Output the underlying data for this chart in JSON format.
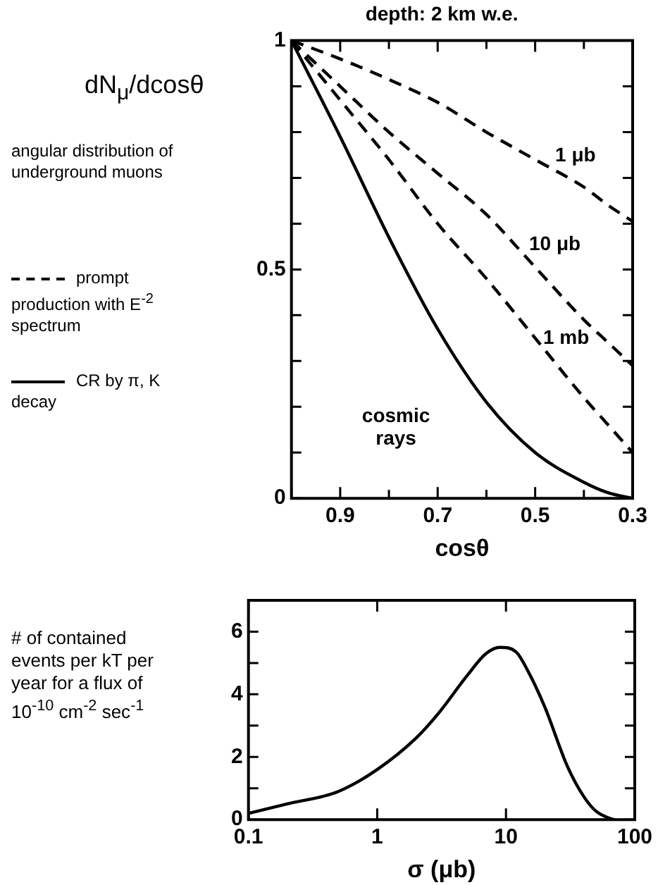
{
  "chart_data": [
    {
      "type": "line",
      "title": "depth: 2 km w.e.",
      "xlabel": "cosθ",
      "ylabel": "dN$_{μ}$/dcosθ",
      "x": [
        1.0,
        0.9,
        0.8,
        0.7,
        0.6,
        0.5,
        0.4,
        0.35,
        0.3
      ],
      "xlim": [
        1.0,
        0.3
      ],
      "xticks": [
        {
          "value": 1.0,
          "label": null
        },
        0.9,
        {
          "value": 0.8,
          "label": null
        },
        0.7,
        {
          "value": 0.6,
          "label": null
        },
        0.5,
        {
          "value": 0.4,
          "label": null
        },
        0.3
      ],
      "ylim": [
        0,
        1
      ],
      "yticks": [
        0,
        {
          "value": 0.1,
          "label": null
        },
        {
          "value": 0.2,
          "label": null
        },
        {
          "value": 0.3,
          "label": null
        },
        {
          "value": 0.4,
          "label": null
        },
        0.5,
        {
          "value": 0.6,
          "label": null
        },
        {
          "value": 0.7,
          "label": null
        },
        {
          "value": 0.8,
          "label": null
        },
        {
          "value": 0.9,
          "label": null
        },
        1
      ],
      "series": [
        {
          "name": "1 μb",
          "color": "#000000",
          "line_style": "dashed",
          "values": [
            1,
            0.96,
            0.915,
            0.865,
            0.8,
            0.74,
            0.68,
            0.64,
            0.605
          ]
        },
        {
          "name": "10 μb",
          "color": "#000000",
          "line_style": "dashed",
          "values": [
            1,
            0.9,
            0.8,
            0.71,
            0.62,
            0.505,
            0.39,
            0.34,
            0.29
          ]
        },
        {
          "name": "1 mb",
          "color": "#000000",
          "line_style": "dashed",
          "values": [
            1,
            0.87,
            0.74,
            0.6,
            0.48,
            0.35,
            0.22,
            0.16,
            0.1
          ]
        },
        {
          "name": "cosmic rays",
          "color": "#000000",
          "line_style": "solid",
          "values": [
            1,
            0.79,
            0.57,
            0.37,
            0.21,
            0.1,
            0.035,
            0.012,
            0
          ]
        }
      ],
      "grid": false,
      "legend": false,
      "annotations": [
        "angular distribution of underground muons",
        "prompt production with E$^{-2}$ spectrum",
        "CR by π, K decay"
      ]
    },
    {
      "type": "line",
      "xlabel": "σ (μb)",
      "ylabel": "# of contained events per kT per year for a flux of 10$^{-10}$ cm$^{-2}$ sec$^{-1}$",
      "log": "x",
      "x": [
        0.1,
        0.2,
        0.5,
        1,
        2,
        3,
        5,
        7,
        9,
        12,
        15,
        20,
        30,
        40,
        50,
        65,
        70
      ],
      "xlim": [
        0.1,
        100
      ],
      "xticks": [
        0.1,
        1,
        10,
        100
      ],
      "ylim": [
        0,
        7
      ],
      "yticks": [
        0,
        {
          "value": 1,
          "label": null
        },
        2,
        {
          "value": 3,
          "label": null
        },
        4,
        {
          "value": 5,
          "label": null
        },
        6,
        {
          "value": 7,
          "label": null
        }
      ],
      "series": [
        {
          "color": "#000000",
          "line_style": "solid",
          "values": [
            0.2,
            0.5,
            0.9,
            1.6,
            2.6,
            3.4,
            4.6,
            5.3,
            5.5,
            5.35,
            4.7,
            3.6,
            1.7,
            0.75,
            0.27,
            0.03,
            0
          ]
        }
      ],
      "grid": false,
      "legend": false
    }
  ]
}
